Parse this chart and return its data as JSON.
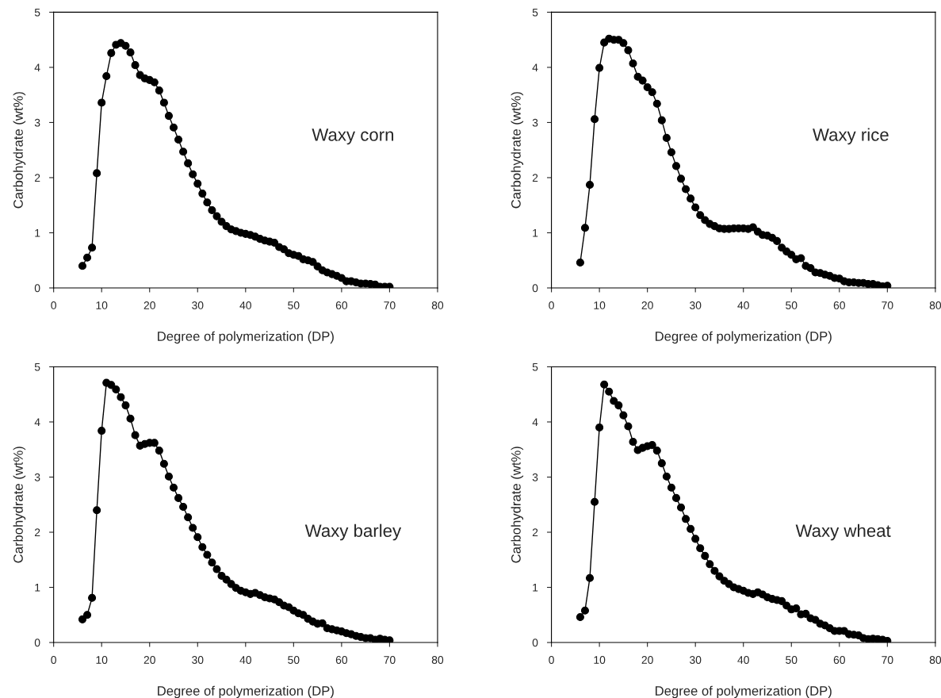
{
  "chart_data": [
    {
      "type": "line",
      "xlabel": "Degree of polymerization (DP)",
      "ylabel": "Carbohydrate (wt%)",
      "annotations": [
        "Waxy corn"
      ],
      "xlim": [
        0,
        80
      ],
      "ylim": [
        0,
        5
      ],
      "xticks": [
        0,
        10,
        20,
        30,
        40,
        50,
        60,
        70,
        80
      ],
      "yticks": [
        0,
        1,
        2,
        3,
        4,
        5
      ],
      "marker": "circle",
      "grid": false,
      "x": [
        6,
        7,
        8,
        9,
        10,
        11,
        12,
        13,
        14,
        15,
        16,
        17,
        18,
        19,
        20,
        21,
        22,
        23,
        24,
        25,
        26,
        27,
        28,
        29,
        30,
        31,
        32,
        33,
        34,
        35,
        36,
        37,
        38,
        39,
        40,
        41,
        42,
        43,
        44,
        45,
        46,
        47,
        48,
        49,
        50,
        51,
        52,
        53,
        54,
        55,
        56,
        57,
        58,
        59,
        60,
        61,
        62,
        63,
        64,
        65,
        66,
        67,
        68,
        69,
        70
      ],
      "series": [
        {
          "color": "#000000",
          "values": [
            0.4,
            0.55,
            0.73,
            2.08,
            3.36,
            3.84,
            4.26,
            4.41,
            4.44,
            4.39,
            4.27,
            4.04,
            3.86,
            3.8,
            3.77,
            3.73,
            3.58,
            3.36,
            3.12,
            2.91,
            2.69,
            2.47,
            2.26,
            2.06,
            1.89,
            1.71,
            1.55,
            1.41,
            1.3,
            1.2,
            1.12,
            1.06,
            1.03,
            1.0,
            0.98,
            0.96,
            0.93,
            0.89,
            0.86,
            0.84,
            0.82,
            0.74,
            0.7,
            0.63,
            0.6,
            0.58,
            0.52,
            0.5,
            0.47,
            0.39,
            0.32,
            0.28,
            0.25,
            0.22,
            0.18,
            0.12,
            0.12,
            0.1,
            0.08,
            0.08,
            0.07,
            0.06,
            0.02,
            0.02,
            0.02
          ]
        }
      ]
    },
    {
      "type": "line",
      "xlabel": "Degree of polymerization (DP)",
      "ylabel": "Carbohydrate (wt%)",
      "annotations": [
        "Waxy rice"
      ],
      "xlim": [
        0,
        80
      ],
      "ylim": [
        0,
        5
      ],
      "xticks": [
        0,
        10,
        20,
        30,
        40,
        50,
        60,
        70,
        80
      ],
      "yticks": [
        0,
        1,
        2,
        3,
        4,
        5
      ],
      "marker": "circle",
      "grid": false,
      "x": [
        6,
        7,
        8,
        9,
        10,
        11,
        12,
        13,
        14,
        15,
        16,
        17,
        18,
        19,
        20,
        21,
        22,
        23,
        24,
        25,
        26,
        27,
        28,
        29,
        30,
        31,
        32,
        33,
        34,
        35,
        36,
        37,
        38,
        39,
        40,
        41,
        42,
        43,
        44,
        45,
        46,
        47,
        48,
        49,
        50,
        51,
        52,
        53,
        54,
        55,
        56,
        57,
        58,
        59,
        60,
        61,
        62,
        63,
        64,
        65,
        66,
        67,
        68,
        69,
        70
      ],
      "series": [
        {
          "color": "#000000",
          "values": [
            0.46,
            1.09,
            1.87,
            3.06,
            3.99,
            4.45,
            4.52,
            4.5,
            4.5,
            4.44,
            4.31,
            4.07,
            3.83,
            3.76,
            3.64,
            3.55,
            3.34,
            3.04,
            2.72,
            2.46,
            2.21,
            1.98,
            1.79,
            1.62,
            1.46,
            1.32,
            1.23,
            1.16,
            1.12,
            1.08,
            1.07,
            1.07,
            1.08,
            1.08,
            1.08,
            1.07,
            1.1,
            1.02,
            0.96,
            0.95,
            0.91,
            0.85,
            0.73,
            0.66,
            0.6,
            0.52,
            0.54,
            0.4,
            0.36,
            0.28,
            0.27,
            0.24,
            0.22,
            0.18,
            0.17,
            0.12,
            0.1,
            0.1,
            0.09,
            0.09,
            0.07,
            0.07,
            0.05,
            0.03,
            0.04
          ]
        }
      ]
    },
    {
      "type": "line",
      "xlabel": "Degree of polymerization (DP)",
      "ylabel": "Carbohydrate (wt%)",
      "annotations": [
        "Waxy barley"
      ],
      "xlim": [
        0,
        80
      ],
      "ylim": [
        0,
        5
      ],
      "xticks": [
        0,
        10,
        20,
        30,
        40,
        50,
        60,
        70,
        80
      ],
      "yticks": [
        0,
        1,
        2,
        3,
        4,
        5
      ],
      "marker": "circle",
      "grid": false,
      "x": [
        6,
        7,
        8,
        9,
        10,
        11,
        12,
        13,
        14,
        15,
        16,
        17,
        18,
        19,
        20,
        21,
        22,
        23,
        24,
        25,
        26,
        27,
        28,
        29,
        30,
        31,
        32,
        33,
        34,
        35,
        36,
        37,
        38,
        39,
        40,
        41,
        42,
        43,
        44,
        45,
        46,
        47,
        48,
        49,
        50,
        51,
        52,
        53,
        54,
        55,
        56,
        57,
        58,
        59,
        60,
        61,
        62,
        63,
        64,
        65,
        66,
        67,
        68,
        69,
        70
      ],
      "series": [
        {
          "color": "#000000",
          "values": [
            0.42,
            0.5,
            0.81,
            2.4,
            3.84,
            4.71,
            4.67,
            4.59,
            4.45,
            4.3,
            4.06,
            3.76,
            3.57,
            3.6,
            3.62,
            3.62,
            3.48,
            3.24,
            3.01,
            2.81,
            2.62,
            2.46,
            2.27,
            2.08,
            1.91,
            1.73,
            1.59,
            1.45,
            1.33,
            1.21,
            1.14,
            1.06,
            0.99,
            0.94,
            0.91,
            0.88,
            0.9,
            0.86,
            0.82,
            0.8,
            0.78,
            0.73,
            0.67,
            0.64,
            0.58,
            0.53,
            0.5,
            0.43,
            0.38,
            0.34,
            0.35,
            0.26,
            0.24,
            0.22,
            0.2,
            0.17,
            0.15,
            0.12,
            0.1,
            0.08,
            0.08,
            0.05,
            0.07,
            0.05,
            0.04
          ]
        }
      ]
    },
    {
      "type": "line",
      "xlabel": "Degree of polymerization (DP)",
      "ylabel": "Carbohydrate (wt%)",
      "annotations": [
        "Waxy wheat"
      ],
      "xlim": [
        0,
        80
      ],
      "ylim": [
        0,
        5
      ],
      "xticks": [
        0,
        10,
        20,
        30,
        40,
        50,
        60,
        70,
        80
      ],
      "yticks": [
        0,
        1,
        2,
        3,
        4,
        5
      ],
      "marker": "circle",
      "grid": false,
      "x": [
        6,
        7,
        8,
        9,
        10,
        11,
        12,
        13,
        14,
        15,
        16,
        17,
        18,
        19,
        20,
        21,
        22,
        23,
        24,
        25,
        26,
        27,
        28,
        29,
        30,
        31,
        32,
        33,
        34,
        35,
        36,
        37,
        38,
        39,
        40,
        41,
        42,
        43,
        44,
        45,
        46,
        47,
        48,
        49,
        50,
        51,
        52,
        53,
        54,
        55,
        56,
        57,
        58,
        59,
        60,
        61,
        62,
        63,
        64,
        65,
        66,
        67,
        68,
        69,
        70
      ],
      "series": [
        {
          "color": "#000000",
          "values": [
            0.46,
            0.58,
            1.17,
            2.55,
            3.9,
            4.68,
            4.55,
            4.38,
            4.3,
            4.12,
            3.92,
            3.64,
            3.49,
            3.53,
            3.56,
            3.58,
            3.48,
            3.25,
            3.01,
            2.81,
            2.62,
            2.45,
            2.24,
            2.06,
            1.88,
            1.71,
            1.57,
            1.42,
            1.3,
            1.2,
            1.12,
            1.06,
            1.0,
            0.97,
            0.94,
            0.9,
            0.88,
            0.91,
            0.87,
            0.82,
            0.79,
            0.77,
            0.75,
            0.67,
            0.6,
            0.62,
            0.51,
            0.52,
            0.44,
            0.41,
            0.34,
            0.31,
            0.26,
            0.21,
            0.21,
            0.21,
            0.15,
            0.14,
            0.13,
            0.08,
            0.06,
            0.07,
            0.06,
            0.05,
            0.03
          ]
        }
      ]
    }
  ]
}
